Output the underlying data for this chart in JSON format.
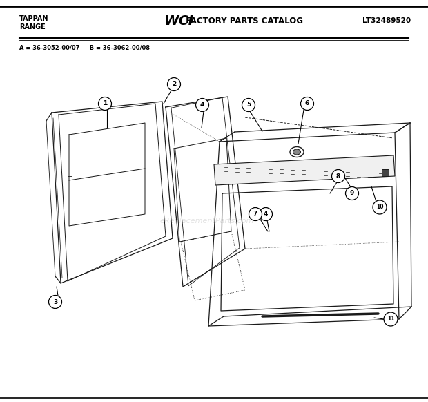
{
  "title_left1": "TAPPAN",
  "title_left2": "RANGE",
  "wci_logo": "WCI",
  "title_center": " FACTORY PARTS CATALOG",
  "title_right": "LT32489520",
  "model_a": "A = 36-3052-00/07",
  "model_b": "B = 36-3062-00/08",
  "bg_color": "#ffffff",
  "diagram_color": "#1a1a1a",
  "figsize": [
    6.2,
    5.82
  ],
  "dpi": 100
}
